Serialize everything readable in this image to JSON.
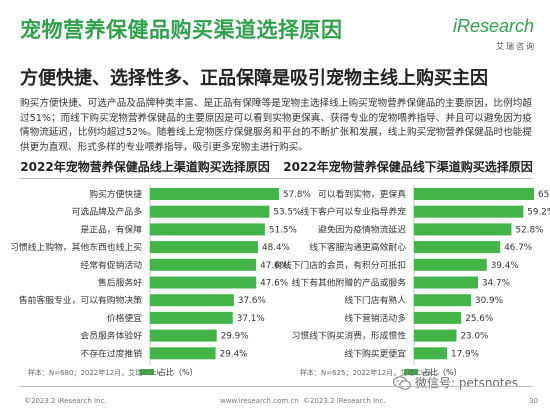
{
  "title": "宠物营养保健品购买渠道选择原因",
  "subtitle": "方便快捷、选择性多、正品保障是吸引宠物主线上购买主因",
  "logo": {
    "word": "iResearch",
    "sub": "艾瑞咨询"
  },
  "intro": "购买方便快捷、可选产品及品牌种类丰富、是正品有保障等是宠物主选择线上购买宠物营养保健品的主要原因，比例均超过51%；而线下购买宠物营养保健品的主要原因是可以看到实物更保真、获得专业的宠物喂养指导、并且可以避免因为疫情物流延迟，比例均超过52%。随着线上宠物医疗保健服务和平台的不断扩张和发展，线上购买宠物营养保健品时也能提供更为直观、形式多样的专业喂养指导，吸引更多宠物主进行购买。",
  "legend_label": "占比（%）",
  "sources": {
    "left": "样本：N=680；2022年12月，艾瑞iClick...",
    "right": "样本：N=625；2022年12月，艾瑞iClick..."
  },
  "footer": {
    "left": "©2023.2 iResearch Inc.",
    "center": "www.iresearch.com.cn",
    "right2": "©2023.2 iResearch Inc.",
    "page": "30"
  },
  "watermark": "微信号: petsnotes",
  "colors": {
    "accent": "#2fa14a",
    "bar": "#43b548",
    "legend_bar": "#43b548"
  },
  "chart_data": [
    {
      "type": "bar",
      "orientation": "horizontal",
      "title": "2022年宠物营养保健品线上渠道购买选择原因",
      "categories": [
        "购买方便快捷",
        "可选品牌及产品多",
        "是正品，有保障",
        "习惯线上购物，其他东西也线上买",
        "经常有促销活动",
        "售后服务好",
        "售前客服专业，可以有购物决策",
        "价格便宜",
        "会员服务体验好",
        "不存在过度推销"
      ],
      "values": [
        57.8,
        53.5,
        51.5,
        48.4,
        47.6,
        47.6,
        37.6,
        37.1,
        29.9,
        29.4
      ],
      "value_labels": [
        "57.8%",
        "53.5%",
        "51.5%",
        "48.4%",
        "47.6%",
        "47.6%",
        "37.6%",
        "37.1%",
        "29.9%",
        "29.4%"
      ],
      "unit": "%"
    },
    {
      "type": "bar",
      "orientation": "horizontal",
      "title": "2022年宠物营养保健品线下渠道购买选择原因",
      "categories": [
        "可以看到实物，更保真",
        "线下客户可以专业指导养宠",
        "避免因为疫情物流延迟",
        "线下客服沟通更高效耐心",
        "有线下门店的会员，有积分可抵扣",
        "线下有其他附赠的产品或服务",
        "线下门店有熟人",
        "线下营销活动多",
        "习惯线下购买消费，形成惯性",
        "线下购买更便宜"
      ],
      "values": [
        65.0,
        59.2,
        52.8,
        46.7,
        39.4,
        34.7,
        30.9,
        25.6,
        23.0,
        17.9
      ],
      "value_labels": [
        "65.0%",
        "59.2%",
        "52.8%",
        "46.7%",
        "39.4%",
        "34.7%",
        "30.9%",
        "25.6%",
        "23.0%",
        "17.9%"
      ],
      "unit": "%"
    }
  ]
}
